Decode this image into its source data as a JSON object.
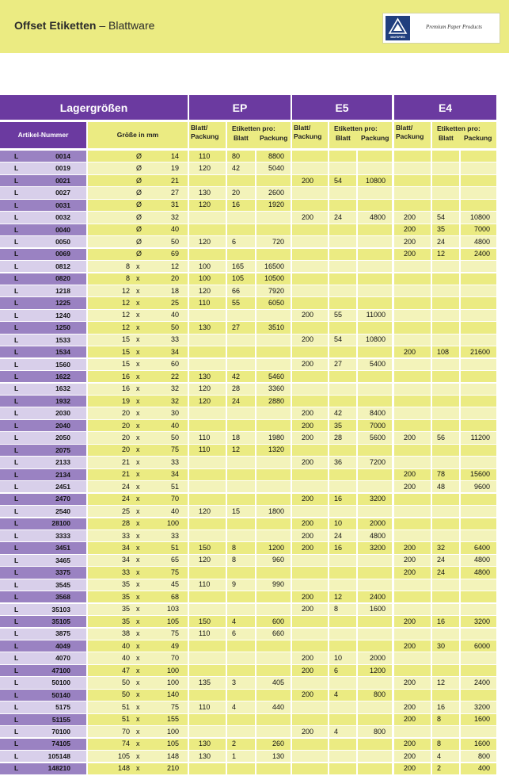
{
  "header": {
    "title_bold": "Offset Etiketten",
    "title_rest": " – Blattware",
    "logo_brand": "MAYSPIES",
    "logo_tagline": "Premium Paper Products"
  },
  "table": {
    "group_headers": {
      "lager": "Lagergrößen",
      "ep": "EP",
      "e5": "E5",
      "e4": "E4"
    },
    "col_artikel": "Artikel-Nummer",
    "col_groesse": "Größe in mm",
    "col_blatt_packung": "Blatt/ Packung",
    "col_etiketten_pro": "Etiketten pro:",
    "col_blatt": "Blatt",
    "col_packung": "Packung",
    "prefix": "L",
    "times": "x",
    "diameter": "Ø",
    "rows": [
      {
        "art": "0014",
        "d": true,
        "w": "14",
        "h": "",
        "ep": [
          "110",
          "80",
          "8800"
        ],
        "e5": [
          "",
          "",
          ""
        ],
        "e4": [
          "",
          "",
          ""
        ]
      },
      {
        "art": "0019",
        "d": true,
        "w": "19",
        "h": "",
        "ep": [
          "120",
          "42",
          "5040"
        ],
        "e5": [
          "",
          "",
          ""
        ],
        "e4": [
          "",
          "",
          ""
        ]
      },
      {
        "art": "0021",
        "d": true,
        "w": "21",
        "h": "",
        "ep": [
          "",
          "",
          ""
        ],
        "e5": [
          "200",
          "54",
          "10800"
        ],
        "e4": [
          "",
          "",
          ""
        ]
      },
      {
        "art": "0027",
        "d": true,
        "w": "27",
        "h": "",
        "ep": [
          "130",
          "20",
          "2600"
        ],
        "e5": [
          "",
          "",
          ""
        ],
        "e4": [
          "",
          "",
          ""
        ]
      },
      {
        "art": "0031",
        "d": true,
        "w": "31",
        "h": "",
        "ep": [
          "120",
          "16",
          "1920"
        ],
        "e5": [
          "",
          "",
          ""
        ],
        "e4": [
          "",
          "",
          ""
        ]
      },
      {
        "art": "0032",
        "d": true,
        "w": "32",
        "h": "",
        "ep": [
          "",
          "",
          ""
        ],
        "e5": [
          "200",
          "24",
          "4800"
        ],
        "e4": [
          "200",
          "54",
          "10800"
        ]
      },
      {
        "art": "0040",
        "d": true,
        "w": "40",
        "h": "",
        "ep": [
          "",
          "",
          ""
        ],
        "e5": [
          "",
          "",
          ""
        ],
        "e4": [
          "200",
          "35",
          "7000"
        ]
      },
      {
        "art": "0050",
        "d": true,
        "w": "50",
        "h": "",
        "ep": [
          "120",
          "6",
          "720"
        ],
        "e5": [
          "",
          "",
          ""
        ],
        "e4": [
          "200",
          "24",
          "4800"
        ]
      },
      {
        "art": "0069",
        "d": true,
        "w": "69",
        "h": "",
        "ep": [
          "",
          "",
          ""
        ],
        "e5": [
          "",
          "",
          ""
        ],
        "e4": [
          "200",
          "12",
          "2400"
        ]
      },
      {
        "art": "0812",
        "d": false,
        "w": "8",
        "h": "12",
        "ep": [
          "100",
          "165",
          "16500"
        ],
        "e5": [
          "",
          "",
          ""
        ],
        "e4": [
          "",
          "",
          ""
        ]
      },
      {
        "art": "0820",
        "d": false,
        "w": "8",
        "h": "20",
        "ep": [
          "100",
          "105",
          "10500"
        ],
        "e5": [
          "",
          "",
          ""
        ],
        "e4": [
          "",
          "",
          ""
        ]
      },
      {
        "art": "1218",
        "d": false,
        "w": "12",
        "h": "18",
        "ep": [
          "120",
          "66",
          "7920"
        ],
        "e5": [
          "",
          "",
          ""
        ],
        "e4": [
          "",
          "",
          ""
        ]
      },
      {
        "art": "1225",
        "d": false,
        "w": "12",
        "h": "25",
        "ep": [
          "110",
          "55",
          "6050"
        ],
        "e5": [
          "",
          "",
          ""
        ],
        "e4": [
          "",
          "",
          ""
        ]
      },
      {
        "art": "1240",
        "d": false,
        "w": "12",
        "h": "40",
        "ep": [
          "",
          "",
          ""
        ],
        "e5": [
          "200",
          "55",
          "11000"
        ],
        "e4": [
          "",
          "",
          ""
        ]
      },
      {
        "art": "1250",
        "d": false,
        "w": "12",
        "h": "50",
        "ep": [
          "130",
          "27",
          "3510"
        ],
        "e5": [
          "",
          "",
          ""
        ],
        "e4": [
          "",
          "",
          ""
        ]
      },
      {
        "art": "1533",
        "d": false,
        "w": "15",
        "h": "33",
        "ep": [
          "",
          "",
          ""
        ],
        "e5": [
          "200",
          "54",
          "10800"
        ],
        "e4": [
          "",
          "",
          ""
        ]
      },
      {
        "art": "1534",
        "d": false,
        "w": "15",
        "h": "34",
        "ep": [
          "",
          "",
          ""
        ],
        "e5": [
          "",
          "",
          ""
        ],
        "e4": [
          "200",
          "108",
          "21600"
        ]
      },
      {
        "art": "1560",
        "d": false,
        "w": "15",
        "h": "60",
        "ep": [
          "",
          "",
          ""
        ],
        "e5": [
          "200",
          "27",
          "5400"
        ],
        "e4": [
          "",
          "",
          ""
        ]
      },
      {
        "art": "1622",
        "d": false,
        "w": "16",
        "h": "22",
        "ep": [
          "130",
          "42",
          "5460"
        ],
        "e5": [
          "",
          "",
          ""
        ],
        "e4": [
          "",
          "",
          ""
        ]
      },
      {
        "art": "1632",
        "d": false,
        "w": "16",
        "h": "32",
        "ep": [
          "120",
          "28",
          "3360"
        ],
        "e5": [
          "",
          "",
          ""
        ],
        "e4": [
          "",
          "",
          ""
        ]
      },
      {
        "art": "1932",
        "d": false,
        "w": "19",
        "h": "32",
        "ep": [
          "120",
          "24",
          "2880"
        ],
        "e5": [
          "",
          "",
          ""
        ],
        "e4": [
          "",
          "",
          ""
        ]
      },
      {
        "art": "2030",
        "d": false,
        "w": "20",
        "h": "30",
        "ep": [
          "",
          "",
          ""
        ],
        "e5": [
          "200",
          "42",
          "8400"
        ],
        "e4": [
          "",
          "",
          ""
        ]
      },
      {
        "art": "2040",
        "d": false,
        "w": "20",
        "h": "40",
        "ep": [
          "",
          "",
          ""
        ],
        "e5": [
          "200",
          "35",
          "7000"
        ],
        "e4": [
          "",
          "",
          ""
        ]
      },
      {
        "art": "2050",
        "d": false,
        "w": "20",
        "h": "50",
        "ep": [
          "110",
          "18",
          "1980"
        ],
        "e5": [
          "200",
          "28",
          "5600"
        ],
        "e4": [
          "200",
          "56",
          "11200"
        ]
      },
      {
        "art": "2075",
        "d": false,
        "w": "20",
        "h": "75",
        "ep": [
          "110",
          "12",
          "1320"
        ],
        "e5": [
          "",
          "",
          ""
        ],
        "e4": [
          "",
          "",
          ""
        ]
      },
      {
        "art": "2133",
        "d": false,
        "w": "21",
        "h": "33",
        "ep": [
          "",
          "",
          ""
        ],
        "e5": [
          "200",
          "36",
          "7200"
        ],
        "e4": [
          "",
          "",
          ""
        ]
      },
      {
        "art": "2134",
        "d": false,
        "w": "21",
        "h": "34",
        "ep": [
          "",
          "",
          ""
        ],
        "e5": [
          "",
          "",
          ""
        ],
        "e4": [
          "200",
          "78",
          "15600"
        ]
      },
      {
        "art": "2451",
        "d": false,
        "w": "24",
        "h": "51",
        "ep": [
          "",
          "",
          ""
        ],
        "e5": [
          "",
          "",
          ""
        ],
        "e4": [
          "200",
          "48",
          "9600"
        ]
      },
      {
        "art": "2470",
        "d": false,
        "w": "24",
        "h": "70",
        "ep": [
          "",
          "",
          ""
        ],
        "e5": [
          "200",
          "16",
          "3200"
        ],
        "e4": [
          "",
          "",
          ""
        ]
      },
      {
        "art": "2540",
        "d": false,
        "w": "25",
        "h": "40",
        "ep": [
          "120",
          "15",
          "1800"
        ],
        "e5": [
          "",
          "",
          ""
        ],
        "e4": [
          "",
          "",
          ""
        ]
      },
      {
        "art": "28100",
        "d": false,
        "w": "28",
        "h": "100",
        "ep": [
          "",
          "",
          ""
        ],
        "e5": [
          "200",
          "10",
          "2000"
        ],
        "e4": [
          "",
          "",
          ""
        ]
      },
      {
        "art": "3333",
        "d": false,
        "w": "33",
        "h": "33",
        "ep": [
          "",
          "",
          ""
        ],
        "e5": [
          "200",
          "24",
          "4800"
        ],
        "e4": [
          "",
          "",
          ""
        ]
      },
      {
        "art": "3451",
        "d": false,
        "w": "34",
        "h": "51",
        "ep": [
          "150",
          "8",
          "1200"
        ],
        "e5": [
          "200",
          "16",
          "3200"
        ],
        "e4": [
          "200",
          "32",
          "6400"
        ]
      },
      {
        "art": "3465",
        "d": false,
        "w": "34",
        "h": "65",
        "ep": [
          "120",
          "8",
          "960"
        ],
        "e5": [
          "",
          "",
          ""
        ],
        "e4": [
          "200",
          "24",
          "4800"
        ]
      },
      {
        "art": "3375",
        "d": false,
        "w": "33",
        "h": "75",
        "ep": [
          "",
          "",
          ""
        ],
        "e5": [
          "",
          "",
          ""
        ],
        "e4": [
          "200",
          "24",
          "4800"
        ]
      },
      {
        "art": "3545",
        "d": false,
        "w": "35",
        "h": "45",
        "ep": [
          "110",
          "9",
          "990"
        ],
        "e5": [
          "",
          "",
          ""
        ],
        "e4": [
          "",
          "",
          ""
        ]
      },
      {
        "art": "3568",
        "d": false,
        "w": "35",
        "h": "68",
        "ep": [
          "",
          "",
          ""
        ],
        "e5": [
          "200",
          "12",
          "2400"
        ],
        "e4": [
          "",
          "",
          ""
        ]
      },
      {
        "art": "35103",
        "d": false,
        "w": "35",
        "h": "103",
        "ep": [
          "",
          "",
          ""
        ],
        "e5": [
          "200",
          "8",
          "1600"
        ],
        "e4": [
          "",
          "",
          ""
        ]
      },
      {
        "art": "35105",
        "d": false,
        "w": "35",
        "h": "105",
        "ep": [
          "150",
          "4",
          "600"
        ],
        "e5": [
          "",
          "",
          ""
        ],
        "e4": [
          "200",
          "16",
          "3200"
        ]
      },
      {
        "art": "3875",
        "d": false,
        "w": "38",
        "h": "75",
        "ep": [
          "110",
          "6",
          "660"
        ],
        "e5": [
          "",
          "",
          ""
        ],
        "e4": [
          "",
          "",
          ""
        ]
      },
      {
        "art": "4049",
        "d": false,
        "w": "40",
        "h": "49",
        "ep": [
          "",
          "",
          ""
        ],
        "e5": [
          "",
          "",
          ""
        ],
        "e4": [
          "200",
          "30",
          "6000"
        ]
      },
      {
        "art": "4070",
        "d": false,
        "w": "40",
        "h": "70",
        "ep": [
          "",
          "",
          ""
        ],
        "e5": [
          "200",
          "10",
          "2000"
        ],
        "e4": [
          "",
          "",
          ""
        ]
      },
      {
        "art": "47100",
        "d": false,
        "w": "47",
        "h": "100",
        "ep": [
          "",
          "",
          ""
        ],
        "e5": [
          "200",
          "6",
          "1200"
        ],
        "e4": [
          "",
          "",
          ""
        ]
      },
      {
        "art": "50100",
        "d": false,
        "w": "50",
        "h": "100",
        "ep": [
          "135",
          "3",
          "405"
        ],
        "e5": [
          "",
          "",
          ""
        ],
        "e4": [
          "200",
          "12",
          "2400"
        ]
      },
      {
        "art": "50140",
        "d": false,
        "w": "50",
        "h": "140",
        "ep": [
          "",
          "",
          ""
        ],
        "e5": [
          "200",
          "4",
          "800"
        ],
        "e4": [
          "",
          "",
          ""
        ]
      },
      {
        "art": "5175",
        "d": false,
        "w": "51",
        "h": "75",
        "ep": [
          "110",
          "4",
          "440"
        ],
        "e5": [
          "",
          "",
          ""
        ],
        "e4": [
          "200",
          "16",
          "3200"
        ]
      },
      {
        "art": "51155",
        "d": false,
        "w": "51",
        "h": "155",
        "ep": [
          "",
          "",
          ""
        ],
        "e5": [
          "",
          "",
          ""
        ],
        "e4": [
          "200",
          "8",
          "1600"
        ]
      },
      {
        "art": "70100",
        "d": false,
        "w": "70",
        "h": "100",
        "ep": [
          "",
          "",
          ""
        ],
        "e5": [
          "200",
          "4",
          "800"
        ],
        "e4": [
          "",
          "",
          ""
        ]
      },
      {
        "art": "74105",
        "d": false,
        "w": "74",
        "h": "105",
        "ep": [
          "130",
          "2",
          "260"
        ],
        "e5": [
          "",
          "",
          ""
        ],
        "e4": [
          "200",
          "8",
          "1600"
        ]
      },
      {
        "art": "105148",
        "d": false,
        "w": "105",
        "h": "148",
        "ep": [
          "130",
          "1",
          "130"
        ],
        "e5": [
          "",
          "",
          ""
        ],
        "e4": [
          "200",
          "4",
          "800"
        ]
      },
      {
        "art": "148210",
        "d": false,
        "w": "148",
        "h": "210",
        "ep": [
          "",
          "",
          ""
        ],
        "e5": [
          "",
          "",
          ""
        ],
        "e4": [
          "200",
          "2",
          "400"
        ]
      }
    ]
  },
  "colors": {
    "purple_header": "#6b3aa0",
    "purple_dark": "#9a82c2",
    "purple_light": "#d8cfea",
    "yellow": "#ebeb82",
    "yellow_light": "#f3f3ba"
  }
}
